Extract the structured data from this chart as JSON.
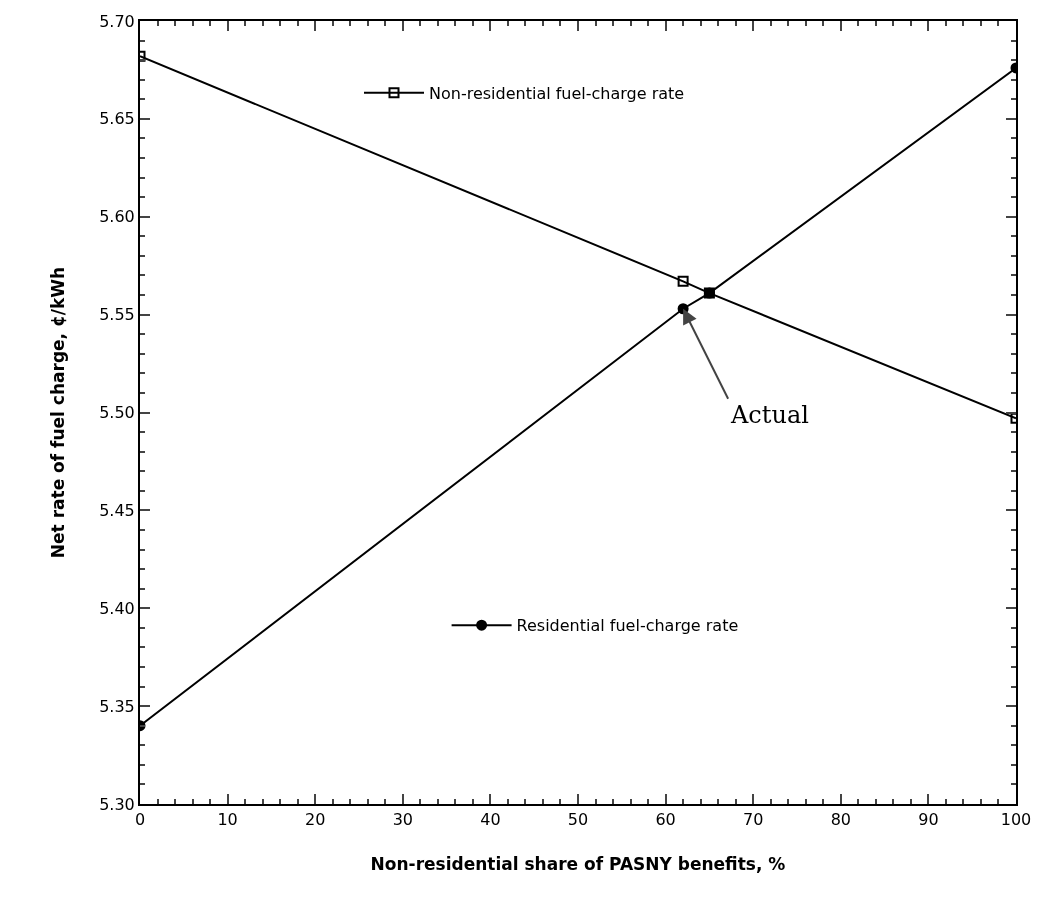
{
  "chart_data": {
    "type": "line",
    "xlabel": "Non-residential share of PASNY benefits, %",
    "ylabel": "Net rate of fuel charge, ¢/kWh",
    "x": [
      0,
      62,
      65,
      100
    ],
    "series": [
      {
        "name": "Non-residential fuel-charge rate",
        "color": "#000000",
        "marker": "square",
        "values": [
          5.682,
          5.567,
          5.561,
          5.497
        ]
      },
      {
        "name": "Residential fuel-charge rate",
        "color": "#000000",
        "marker": "circle",
        "values": [
          5.34,
          5.553,
          5.561,
          5.676
        ]
      }
    ],
    "xlim": [
      0,
      100
    ],
    "xticks": [
      0,
      10,
      20,
      30,
      40,
      50,
      60,
      70,
      80,
      90,
      100
    ],
    "ylim": [
      5.3,
      5.7
    ],
    "yticks": [
      {
        "value": 5.3,
        "label": "5.30"
      },
      {
        "value": 5.35,
        "label": "5.35"
      },
      {
        "value": 5.4,
        "label": "5.40"
      },
      {
        "value": 5.45,
        "label": "5.45"
      },
      {
        "value": 5.5,
        "label": "5.50"
      },
      {
        "value": 5.55,
        "label": "5.55"
      },
      {
        "value": 5.6,
        "label": "5.60"
      },
      {
        "value": 5.65,
        "label": "5.65"
      },
      {
        "value": 5.7,
        "label": "5.70"
      }
    ],
    "annotations": [
      {
        "text": "Actual",
        "x": 62,
        "y": 5.553
      }
    ],
    "grid": false,
    "legend": "left",
    "line_style": "solid"
  }
}
